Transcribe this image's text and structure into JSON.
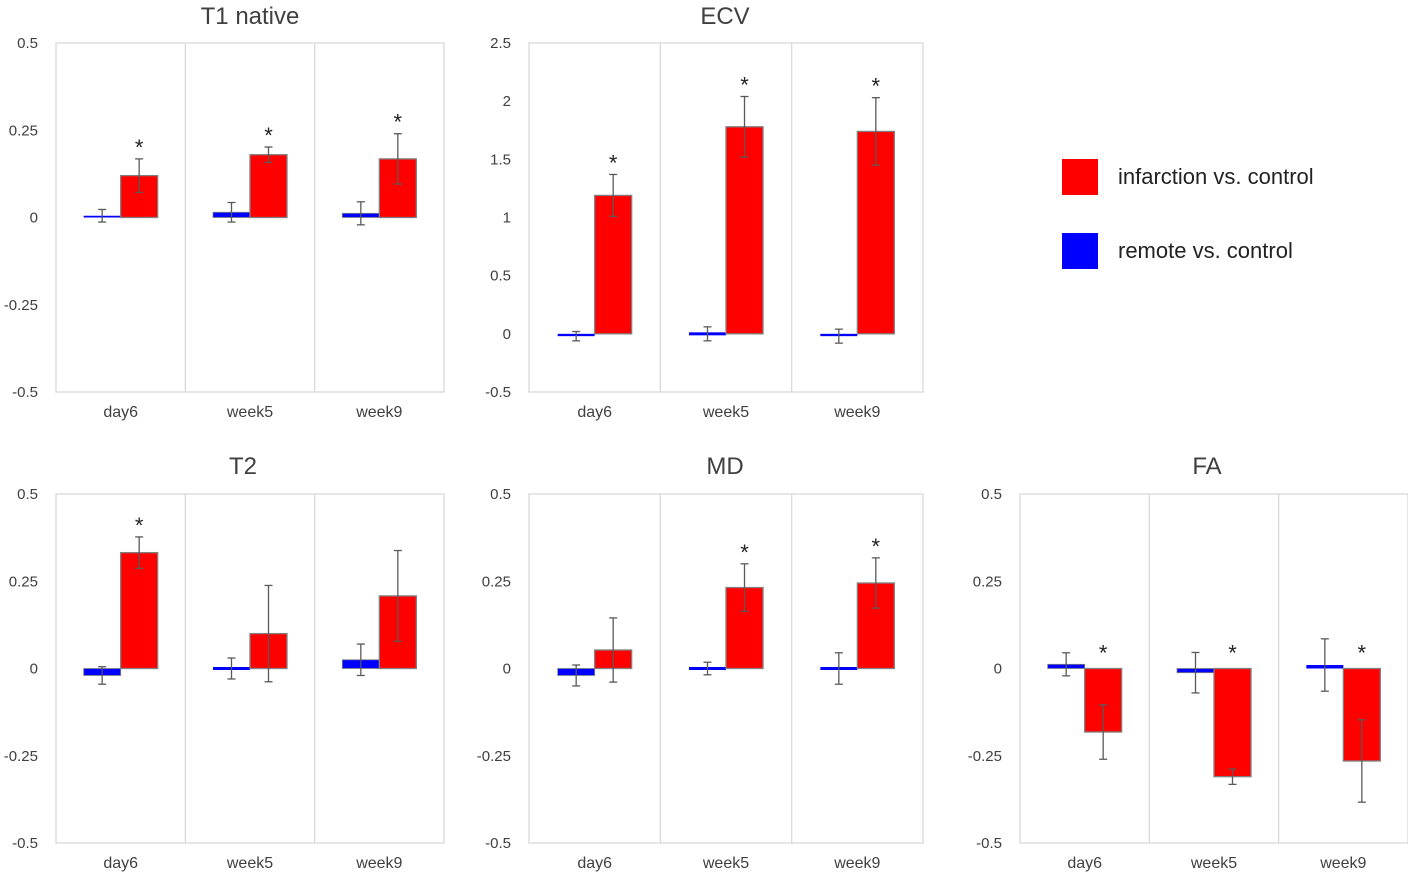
{
  "colors": {
    "infarction": "#ff0000",
    "remote": "#0000ff",
    "bar_border": "#808080"
  },
  "legend": [
    {
      "key": "infarction",
      "label": "infarction vs. control"
    },
    {
      "key": "remote",
      "label": "remote vs. control"
    }
  ],
  "chart_data": [
    {
      "type": "bar",
      "title": "T1 native",
      "categories": [
        "day6",
        "week5",
        "week9"
      ],
      "ylim": [
        -0.5,
        0.5
      ],
      "yticks": [
        "0.5",
        "0.25",
        "0",
        "-0.25",
        "-0.5"
      ],
      "series": [
        {
          "name": "remote vs. control",
          "key": "remote",
          "values": [
            0.005,
            0.015,
            0.012
          ],
          "err": [
            0.018,
            0.028,
            0.033
          ]
        },
        {
          "name": "infarction vs. control",
          "key": "infarction",
          "values": [
            0.12,
            0.18,
            0.168
          ],
          "err": [
            0.048,
            0.022,
            0.072
          ]
        }
      ],
      "significant": [
        true,
        true,
        true
      ]
    },
    {
      "type": "bar",
      "title": "ECV",
      "categories": [
        "day6",
        "week5",
        "week9"
      ],
      "ylim": [
        -0.5,
        2.5
      ],
      "yticks": [
        "2.5",
        "2",
        "1.5",
        "1",
        "0.5",
        "0",
        "-0.5"
      ],
      "series": [
        {
          "name": "remote vs. control",
          "key": "remote",
          "values": [
            -0.02,
            0.0,
            -0.02
          ],
          "err": [
            0.04,
            0.06,
            0.06
          ]
        },
        {
          "name": "infarction vs. control",
          "key": "infarction",
          "values": [
            1.19,
            1.78,
            1.74
          ],
          "err": [
            0.18,
            0.26,
            0.29
          ]
        }
      ],
      "significant": [
        true,
        true,
        true
      ]
    },
    {
      "type": "bar",
      "title": "T2",
      "categories": [
        "day6",
        "week5",
        "week9"
      ],
      "ylim": [
        -0.5,
        0.5
      ],
      "yticks": [
        "0.5",
        "0.25",
        "0",
        "-0.25",
        "-0.5"
      ],
      "series": [
        {
          "name": "remote vs. control",
          "key": "remote",
          "values": [
            -0.02,
            0.0,
            0.025
          ],
          "err": [
            0.025,
            0.03,
            0.045
          ]
        },
        {
          "name": "infarction vs. control",
          "key": "infarction",
          "values": [
            0.332,
            0.1,
            0.208
          ],
          "err": [
            0.045,
            0.138,
            0.13
          ]
        }
      ],
      "significant": [
        true,
        false,
        false
      ]
    },
    {
      "type": "bar",
      "title": "MD",
      "categories": [
        "day6",
        "week5",
        "week9"
      ],
      "ylim": [
        -0.5,
        0.5
      ],
      "yticks": [
        "0.5",
        "0.25",
        "0",
        "-0.25",
        "-0.5"
      ],
      "series": [
        {
          "name": "remote vs. control",
          "key": "remote",
          "values": [
            -0.02,
            0.0,
            0.0
          ],
          "err": [
            0.03,
            0.018,
            0.045
          ]
        },
        {
          "name": "infarction vs. control",
          "key": "infarction",
          "values": [
            0.053,
            0.232,
            0.245
          ],
          "err": [
            0.092,
            0.068,
            0.072
          ]
        }
      ],
      "significant": [
        false,
        true,
        true
      ]
    },
    {
      "type": "bar",
      "title": "FA",
      "categories": [
        "day6",
        "week5",
        "week9"
      ],
      "ylim": [
        -0.5,
        0.5
      ],
      "yticks": [
        "0.5",
        "0.25",
        "0",
        "-0.25",
        "-0.5"
      ],
      "series": [
        {
          "name": "remote vs. control",
          "key": "remote",
          "values": [
            0.012,
            -0.012,
            0.01
          ],
          "err": [
            0.033,
            0.058,
            0.075
          ]
        },
        {
          "name": "infarction vs. control",
          "key": "infarction",
          "values": [
            -0.182,
            -0.31,
            -0.265
          ],
          "err": [
            0.078,
            0.022,
            0.118
          ]
        }
      ],
      "significant": [
        true,
        true,
        true
      ]
    }
  ]
}
